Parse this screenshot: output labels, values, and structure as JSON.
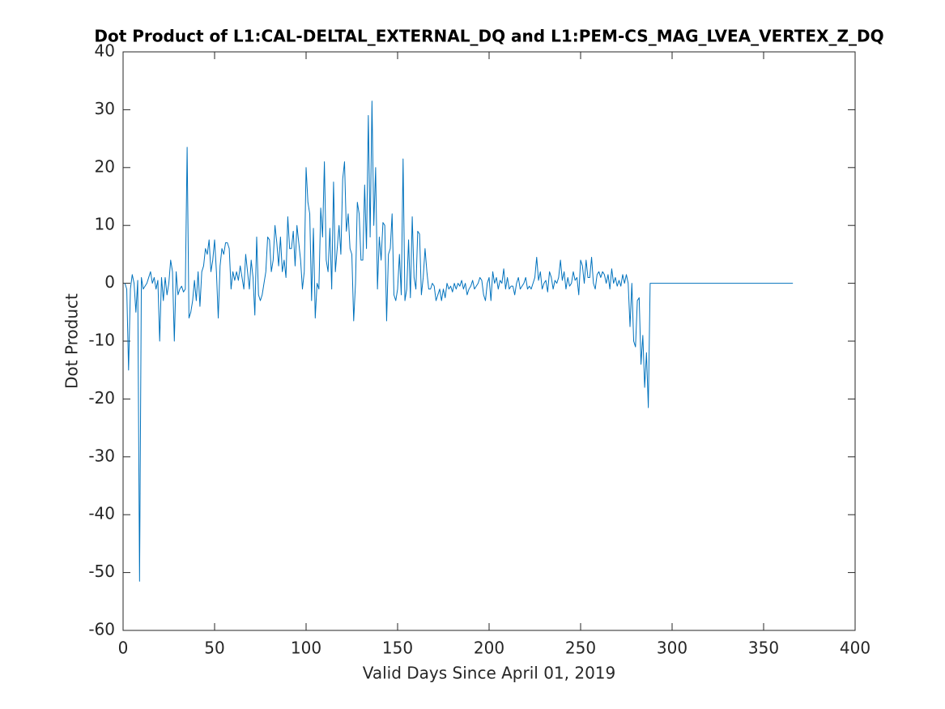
{
  "chart_data": {
    "type": "line",
    "title": "Dot Product of L1:CAL-DELTAL_EXTERNAL_DQ and L1:PEM-CS_MAG_LVEA_VERTEX_Z_DQ",
    "xlabel": "Valid Days Since April 01, 2019",
    "ylabel": "Dot Product",
    "xlim": [
      0,
      400
    ],
    "xticks": [
      0,
      50,
      100,
      150,
      200,
      250,
      300,
      350,
      400
    ],
    "ylim": [
      -60,
      40
    ],
    "yticks": [
      -60,
      -50,
      -40,
      -30,
      -20,
      -10,
      0,
      10,
      20,
      30,
      40
    ],
    "color": "#0072bd",
    "x": [
      1,
      2,
      3,
      4,
      5,
      6,
      7,
      8,
      9,
      10,
      11,
      12,
      13,
      14,
      15,
      16,
      17,
      18,
      19,
      20,
      21,
      22,
      23,
      24,
      25,
      26,
      27,
      28,
      29,
      30,
      31,
      32,
      33,
      34,
      35,
      36,
      37,
      38,
      39,
      40,
      41,
      42,
      43,
      44,
      45,
      46,
      47,
      48,
      49,
      50,
      51,
      52,
      53,
      54,
      55,
      56,
      57,
      58,
      59,
      60,
      61,
      62,
      63,
      64,
      65,
      66,
      67,
      68,
      69,
      70,
      71,
      72,
      73,
      74,
      75,
      76,
      77,
      78,
      79,
      80,
      81,
      82,
      83,
      84,
      85,
      86,
      87,
      88,
      89,
      90,
      91,
      92,
      93,
      94,
      95,
      96,
      97,
      98,
      99,
      100,
      101,
      102,
      103,
      104,
      105,
      106,
      107,
      108,
      109,
      110,
      111,
      112,
      113,
      114,
      115,
      116,
      117,
      118,
      119,
      120,
      121,
      122,
      123,
      124,
      125,
      126,
      127,
      128,
      129,
      130,
      131,
      132,
      133,
      134,
      135,
      136,
      137,
      138,
      139,
      140,
      141,
      142,
      143,
      144,
      145,
      146,
      147,
      148,
      149,
      150,
      151,
      152,
      153,
      154,
      155,
      156,
      157,
      158,
      159,
      160,
      161,
      162,
      163,
      164,
      165,
      166,
      167,
      168,
      169,
      170,
      171,
      172,
      173,
      174,
      175,
      176,
      177,
      178,
      179,
      180,
      181,
      182,
      183,
      184,
      185,
      186,
      187,
      188,
      189,
      190,
      191,
      192,
      193,
      194,
      195,
      196,
      197,
      198,
      199,
      200,
      201,
      202,
      203,
      204,
      205,
      206,
      207,
      208,
      209,
      210,
      211,
      212,
      213,
      214,
      215,
      216,
      217,
      218,
      219,
      220,
      221,
      222,
      223,
      224,
      225,
      226,
      227,
      228,
      229,
      230,
      231,
      232,
      233,
      234,
      235,
      236,
      237,
      238,
      239,
      240,
      241,
      242,
      243,
      244,
      245,
      246,
      247,
      248,
      249,
      250,
      251,
      252,
      253,
      254,
      255,
      256,
      257,
      258,
      259,
      260,
      261,
      262,
      263,
      264,
      265,
      266,
      267,
      268,
      269,
      270,
      271,
      272,
      273,
      274,
      275,
      276,
      277,
      278,
      279,
      280,
      281,
      282,
      283,
      284,
      285,
      286,
      287,
      288,
      366
    ],
    "values": [
      0,
      -1,
      -15,
      -1,
      1.5,
      0,
      -5,
      0.5,
      -51.5,
      1,
      -1,
      -0.5,
      0,
      1,
      2,
      0,
      1,
      -1,
      0.5,
      -10,
      1,
      -3,
      1,
      -2,
      0,
      4,
      2,
      -10,
      2,
      -2,
      -1,
      -0.5,
      -1.5,
      -1,
      23.5,
      -6,
      -5,
      -3,
      0.5,
      -3,
      2,
      -4,
      2,
      3,
      6,
      5,
      7.5,
      2,
      4,
      7.5,
      2,
      -6,
      3,
      6,
      5,
      7,
      7,
      6,
      -1,
      2,
      0.5,
      2,
      0.5,
      3,
      1,
      -1,
      5,
      2,
      -1,
      4,
      1,
      -5.5,
      8,
      -2,
      -3,
      -2,
      0,
      2,
      8,
      7.5,
      2,
      4,
      10,
      7,
      3,
      8,
      2,
      4,
      1,
      11.5,
      6,
      6,
      9,
      3,
      10,
      7,
      4,
      -1,
      2,
      20,
      14,
      12,
      -3,
      9.5,
      -6,
      0,
      -1,
      13,
      8,
      21,
      4,
      2,
      9.5,
      -1,
      17.5,
      2,
      6,
      10,
      5,
      18,
      21,
      9,
      12,
      6,
      5,
      -6.5,
      0,
      14,
      12,
      4,
      4,
      17,
      6,
      29,
      8,
      31.5,
      10,
      20,
      -1,
      8,
      4,
      10.5,
      10,
      -6.5,
      5,
      6,
      12,
      -2,
      -3,
      -1,
      5,
      -2,
      21.5,
      -3,
      -1,
      7.5,
      -2.5,
      11.5,
      1,
      -1,
      9,
      8.5,
      -2,
      1,
      6,
      2,
      -1,
      -1,
      0,
      -0.5,
      -3,
      -2,
      -1,
      -3,
      -1,
      -2.5,
      0,
      -1,
      -0.5,
      -1.5,
      0,
      -1,
      0,
      -0.5,
      0.5,
      -1,
      0,
      -2,
      -1,
      -0.5,
      0.5,
      -1,
      -0.5,
      0,
      1,
      0.5,
      -2,
      -3,
      0,
      1,
      -3,
      2,
      0,
      1,
      -1,
      0.5,
      0,
      2.5,
      -1,
      1,
      -1,
      -0.5,
      -0.5,
      -2,
      0,
      1,
      -1,
      -0.5,
      0,
      1,
      -1,
      -0.5,
      -1,
      0,
      1,
      4.5,
      0.5,
      2,
      -1,
      0,
      0.5,
      -1.5,
      2,
      1,
      -1,
      0.5,
      0,
      1,
      4,
      0.5,
      2,
      -1,
      1,
      -0.5,
      0,
      2,
      0.5,
      1,
      -2,
      4,
      3,
      0,
      4,
      1,
      1,
      4.5,
      0,
      -1,
      1.5,
      2,
      1,
      2,
      1.5,
      0,
      1.5,
      -1,
      2.5,
      0,
      1,
      -0.5,
      0.5,
      -0.5,
      1.5,
      0,
      1.5,
      0,
      -7.5,
      0,
      -10,
      -11,
      -3,
      -2.5,
      -14,
      -9,
      -18,
      -12,
      -21.5,
      0,
      0
    ]
  }
}
